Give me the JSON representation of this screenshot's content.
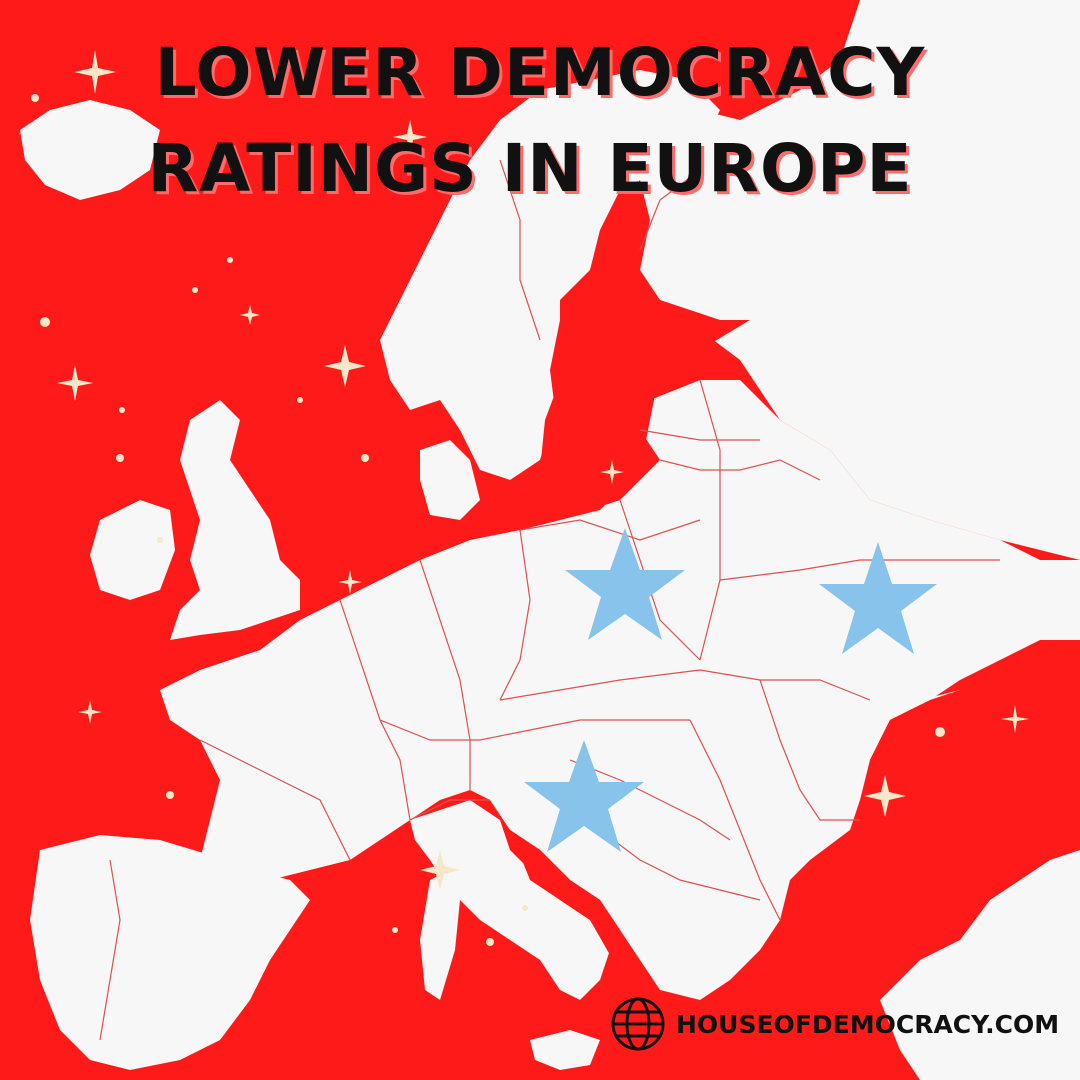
{
  "header": {
    "title_line_1": "LOWER DEMOCRACY",
    "title_line_2": "RATINGS IN EUROPE"
  },
  "footer": {
    "website": "HOUSEOFDEMOCRACY.COM",
    "icon": "globe-icon"
  },
  "colors": {
    "sea": "#ff1a1a",
    "land": "#f7f7f7",
    "borders": "#e05050",
    "stars": "#87c3ea",
    "sparkles": "#f6e7c9",
    "title_text": "#111111",
    "title_shadow": "#ff6b6b"
  },
  "markers": [
    {
      "name": "star-marker-poland",
      "shape": "star"
    },
    {
      "name": "star-marker-ukraine",
      "shape": "star"
    },
    {
      "name": "star-marker-croatia",
      "shape": "star"
    }
  ]
}
